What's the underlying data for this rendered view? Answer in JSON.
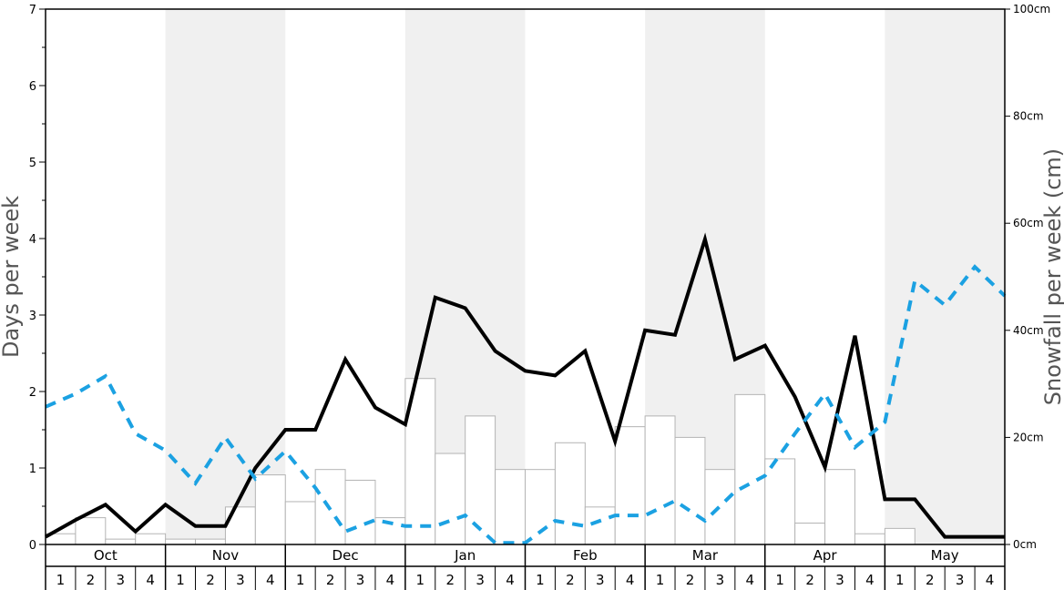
{
  "chart_data": {
    "type": "bar+line",
    "ylabel": "Days per week",
    "y2label": "Snowfall per week (cm)",
    "ylim": [
      0,
      7
    ],
    "y2lim": [
      0,
      100
    ],
    "yticks": [
      "0",
      "1",
      "2",
      "3",
      "4",
      "5",
      "6",
      "7"
    ],
    "y2ticks": [
      "0cm",
      "20cm",
      "40cm",
      "60cm",
      "80cm",
      "100cm"
    ],
    "months": [
      "Oct",
      "Nov",
      "Dec",
      "Jan",
      "Feb",
      "Mar",
      "Apr",
      "May"
    ],
    "weeks": [
      "1",
      "2",
      "3",
      "4"
    ],
    "shaded_months": [
      "Nov",
      "Jan",
      "Mar",
      "May"
    ],
    "colors": {
      "shade": "#f0f0f0",
      "bar_fill": "#ffffff",
      "bar_stroke": "#b4b4b4",
      "solid_line": "#000000",
      "dashed_line": "#1ba1e2"
    },
    "series": [
      {
        "kind": "bar",
        "axis": "right",
        "values": [
          2,
          5,
          1,
          2,
          1,
          1,
          7,
          13,
          8,
          14,
          12,
          5,
          31,
          17,
          24,
          14,
          14,
          19,
          7,
          22,
          24,
          20,
          14,
          28,
          16,
          4,
          14,
          2,
          3,
          0,
          0,
          0
        ]
      },
      {
        "kind": "line",
        "axis": "left",
        "style": "solid",
        "values": [
          0.1,
          0.32,
          0.52,
          0.17,
          0.52,
          0.24,
          0.24,
          1.0,
          1.5,
          1.5,
          2.42,
          1.79,
          1.57,
          3.23,
          3.09,
          2.53,
          2.27,
          2.21,
          2.53,
          1.35,
          2.8,
          2.74,
          3.99,
          2.42,
          2.6,
          1.93,
          1.01,
          2.73,
          0.59,
          0.59,
          0.1,
          0.1,
          0.1
        ]
      },
      {
        "kind": "line",
        "axis": "left",
        "style": "dashed",
        "values": [
          1.8,
          1.97,
          2.2,
          1.45,
          1.23,
          0.8,
          1.4,
          0.86,
          1.22,
          0.74,
          0.17,
          0.32,
          0.24,
          0.24,
          0.38,
          0.02,
          0.02,
          0.31,
          0.24,
          0.38,
          0.38,
          0.57,
          0.31,
          0.69,
          0.9,
          1.45,
          1.97,
          1.27,
          1.6,
          3.45,
          3.13,
          3.63,
          3.25
        ]
      }
    ]
  }
}
